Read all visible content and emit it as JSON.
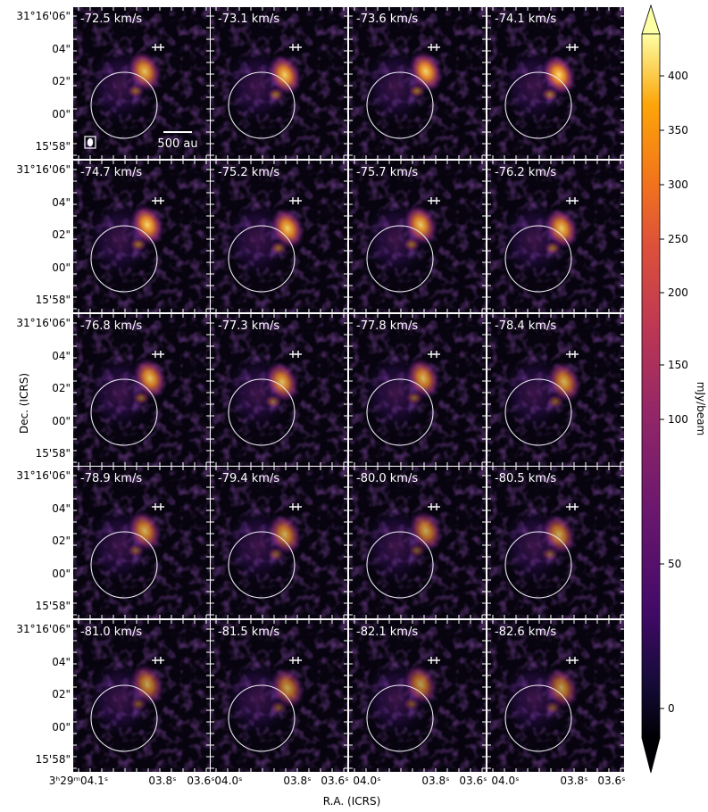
{
  "chart_data": {
    "type": "channel_map",
    "velocity_unit": "km/s",
    "channels": [
      {
        "velocity_label": "-72.5 km/s",
        "peak_mjy_beam": 330
      },
      {
        "velocity_label": "-73.1 km/s",
        "peak_mjy_beam": 350
      },
      {
        "velocity_label": "-73.6 km/s",
        "peak_mjy_beam": 360
      },
      {
        "velocity_label": "-74.1 km/s",
        "peak_mjy_beam": 370
      },
      {
        "velocity_label": "-74.7 km/s",
        "peak_mjy_beam": 360
      },
      {
        "velocity_label": "-75.2 km/s",
        "peak_mjy_beam": 350
      },
      {
        "velocity_label": "-75.7 km/s",
        "peak_mjy_beam": 340
      },
      {
        "velocity_label": "-76.2 km/s",
        "peak_mjy_beam": 340
      },
      {
        "velocity_label": "-76.8 km/s",
        "peak_mjy_beam": 330
      },
      {
        "velocity_label": "-77.3 km/s",
        "peak_mjy_beam": 320
      },
      {
        "velocity_label": "-77.8 km/s",
        "peak_mjy_beam": 310
      },
      {
        "velocity_label": "-78.4 km/s",
        "peak_mjy_beam": 300
      },
      {
        "velocity_label": "-78.9 km/s",
        "peak_mjy_beam": 300
      },
      {
        "velocity_label": "-79.4 km/s",
        "peak_mjy_beam": 290
      },
      {
        "velocity_label": "-80.0 km/s",
        "peak_mjy_beam": 280
      },
      {
        "velocity_label": "-80.5 km/s",
        "peak_mjy_beam": 280
      },
      {
        "velocity_label": "-81.0 km/s",
        "peak_mjy_beam": 270
      },
      {
        "velocity_label": "-81.5 km/s",
        "peak_mjy_beam": 270
      },
      {
        "velocity_label": "-82.1 km/s",
        "peak_mjy_beam": 260
      },
      {
        "velocity_label": "-82.6 km/s",
        "peak_mjy_beam": 260
      }
    ],
    "dec_ticks": [
      "31°16'06\"",
      "04\"",
      "02\"",
      "00\"",
      "15'58\""
    ],
    "ra_ticks_first_panel": [
      "3ʰ29ᵐ04.1ˢ",
      "03.8ˢ",
      "03.6ˢ"
    ],
    "ra_ticks_other_panels": [
      "04.0ˢ",
      "03.8ˢ",
      "03.6ˢ"
    ],
    "xlabel": "R.A. (ICRS)",
    "ylabel": "Dec. (ICRS)",
    "colorbar": {
      "label": "mJy/beam",
      "ticks": [
        0,
        50,
        100,
        150,
        200,
        250,
        300,
        350,
        400
      ],
      "range": [
        -10,
        430
      ],
      "stretch": "nonlinear (sqrt-like)",
      "colormap": "inferno-like",
      "extend": "both"
    },
    "scale_bar_label": "500 au",
    "markers": "white plus signs (two)",
    "circle": "white ring",
    "colors": {
      "background": "#07040f",
      "low": "#3a0f6e",
      "mid": "#b5367a",
      "high": "#f2a13b",
      "peak": "#fdf6a6"
    }
  }
}
